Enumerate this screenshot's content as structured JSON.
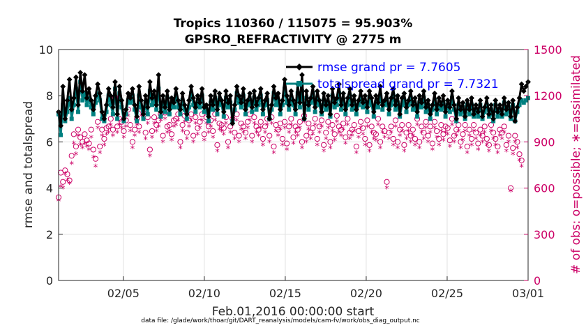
{
  "chart_data": {
    "type": "line",
    "title_line1": "Tropics 110360 / 115075 = 95.903%",
    "title_line2": "GPSRO_REFRACTIVITY @ 2775 m",
    "ylabel": "rmse and totalspread",
    "ylabel_right": "# of obs: o=possible; ∗=assimilated",
    "xlabel": "Feb.01,2016 00:00:00 start",
    "footnote": "data file: /glade/work/thoar/git/DART_reanalysis/models/cam-fv/work/obs_diag_output.nc",
    "ylim": [
      0,
      10
    ],
    "ylim_right": [
      0,
      1500
    ],
    "xlim_days": [
      1,
      30
    ],
    "grid": true,
    "yticks": [
      "0",
      "2",
      "4",
      "6",
      "8",
      "10"
    ],
    "yticks_right": [
      "0",
      "300",
      "600",
      "900",
      "1200",
      "1500"
    ],
    "xticks": [
      {
        "day": 5,
        "label": "02/05"
      },
      {
        "day": 10,
        "label": "02/10"
      },
      {
        "day": 15,
        "label": "02/15"
      },
      {
        "day": 20,
        "label": "02/20"
      },
      {
        "day": 25,
        "label": "02/25"
      },
      {
        "day": 30,
        "label": "03/01"
      }
    ],
    "legend": [
      {
        "label": "rmse grand pr = 7.7605",
        "color": "#000000"
      },
      {
        "label": "totalspread grand pr = 7.7321",
        "color": "#008080"
      }
    ],
    "colors": {
      "rmse": "#000000",
      "spread": "#008080",
      "obs": "#cc0066",
      "grid": "#e0e0e0"
    },
    "series_rmse": [
      7.3,
      6.7,
      8.4,
      7.0,
      7.8,
      8.7,
      7.4,
      7.9,
      8.8,
      7.6,
      9.0,
      8.2,
      8.9,
      7.9,
      8.3,
      7.8,
      7.4,
      8.0,
      8.5,
      8.1,
      7.3,
      7.0,
      7.6,
      8.3,
      8.0,
      7.5,
      8.6,
      7.2,
      8.4,
      7.8,
      7.0,
      7.4,
      8.1,
      7.9,
      8.3,
      7.6,
      7.1,
      8.4,
      7.8,
      7.2,
      8.0,
      7.5,
      8.6,
      7.9,
      8.2,
      7.6,
      8.9,
      7.3,
      8.0,
      7.5,
      8.2,
      7.4,
      7.9,
      7.7,
      8.3,
      7.8,
      7.4,
      8.1,
      7.6,
      7.2,
      7.8,
      8.4,
      7.9,
      7.5,
      8.0,
      7.7,
      8.3,
      7.5,
      7.6,
      7.1,
      8.0,
      7.6,
      8.2,
      7.4,
      8.1,
      7.8,
      7.3,
      8.2,
      7.7,
      8.0,
      6.8,
      7.6,
      8.4,
      8.0,
      7.7,
      8.3,
      7.4,
      7.8,
      8.1,
      7.5,
      8.2,
      7.6,
      7.9,
      8.3,
      7.4,
      7.8,
      8.1,
      7.0,
      7.6,
      8.4,
      7.9,
      8.1,
      7.4,
      7.8,
      8.7,
      8.0,
      7.6,
      8.2,
      7.8,
      7.4,
      8.5,
      7.7,
      8.9,
      7.0,
      8.2,
      7.6,
      7.9,
      8.4,
      7.5,
      8.2,
      7.8,
      7.3,
      8.1,
      7.6,
      8.0,
      7.2,
      8.3,
      7.7,
      7.9,
      8.5,
      7.6,
      8.1,
      7.4,
      7.9,
      8.3,
      7.6,
      8.0,
      7.4,
      7.8,
      8.2,
      7.7,
      8.0,
      7.5,
      8.2,
      7.9,
      7.3,
      8.0,
      7.7,
      8.4,
      7.6,
      7.8,
      8.1,
      7.4,
      7.9,
      8.3,
      7.6,
      8.0,
      7.2,
      7.9,
      8.1,
      7.5,
      7.8,
      8.2,
      7.6,
      7.9,
      7.3,
      8.0,
      7.7,
      8.2,
      7.5,
      7.8,
      7.2,
      7.6,
      8.1,
      7.4,
      7.9,
      7.6,
      8.0,
      7.3,
      7.8,
      7.5,
      8.2,
      7.6,
      7.0,
      7.9,
      7.4,
      7.7,
      7.1,
      7.8,
      7.4,
      7.9,
      7.2,
      7.6,
      7.3,
      7.8,
      7.1,
      7.5,
      7.9,
      7.2,
      7.6,
      7.0,
      7.8,
      7.3,
      7.6,
      7.2,
      7.9,
      7.4,
      7.7,
      7.1,
      7.8,
      6.9,
      7.5,
      7.9,
      8.5,
      8.2,
      8.4,
      8.6
    ],
    "series_spread": [
      7.2,
      6.3,
      7.6,
      6.9,
      7.3,
      7.9,
      7.0,
      7.6,
      8.3,
      7.3,
      8.6,
      7.8,
      8.1,
      7.6,
      7.9,
      7.5,
      7.2,
      7.7,
      8.1,
      7.8,
      7.0,
      6.9,
      7.3,
      8.0,
      7.6,
      7.2,
      8.3,
      7.0,
      8.1,
      7.5,
      6.9,
      7.2,
      7.8,
      7.7,
      8.0,
      7.4,
      6.9,
      8.0,
      7.5,
      7.0,
      7.7,
      7.2,
      8.2,
      7.6,
      7.9,
      7.4,
      8.3,
      7.1,
      7.7,
      7.3,
      7.9,
      7.2,
      7.6,
      7.5,
      8.0,
      7.5,
      7.2,
      7.8,
      7.4,
      7.0,
      7.5,
      8.1,
      7.6,
      7.3,
      7.7,
      7.5,
      8.0,
      7.3,
      7.4,
      6.9,
      7.7,
      7.4,
      7.9,
      7.2,
      7.8,
      7.6,
      7.1,
      7.9,
      7.5,
      7.7,
      6.9,
      7.4,
      8.1,
      7.7,
      7.5,
      8.0,
      7.2,
      7.6,
      7.8,
      7.3,
      7.9,
      7.4,
      7.6,
      8.0,
      7.2,
      7.6,
      7.8,
      7.0,
      7.4,
      8.1,
      7.6,
      7.8,
      7.2,
      7.6,
      8.3,
      7.7,
      7.4,
      7.9,
      7.6,
      7.2,
      8.1,
      7.5,
      8.2,
      7.0,
      7.9,
      7.4,
      7.7,
      8.1,
      7.3,
      7.9,
      7.6,
      7.2,
      7.8,
      7.4,
      7.7,
      7.1,
      8.0,
      7.5,
      7.6,
      8.1,
      7.4,
      7.8,
      7.2,
      7.6,
      8.0,
      7.4,
      7.7,
      7.2,
      7.6,
      7.9,
      7.5,
      7.7,
      7.3,
      7.9,
      7.6,
      7.1,
      7.7,
      7.5,
      8.0,
      7.4,
      7.6,
      7.8,
      7.2,
      7.6,
      8.0,
      7.4,
      7.7,
      7.1,
      7.6,
      7.8,
      7.3,
      7.6,
      7.9,
      7.4,
      7.6,
      7.1,
      7.7,
      7.5,
      7.9,
      7.3,
      7.6,
      7.0,
      7.4,
      7.8,
      7.2,
      7.6,
      7.4,
      7.7,
      7.1,
      7.6,
      7.3,
      7.9,
      7.4,
      6.9,
      7.6,
      7.2,
      7.5,
      7.0,
      7.6,
      7.2,
      7.6,
      7.1,
      7.4,
      7.1,
      7.6,
      7.0,
      7.3,
      7.6,
      7.1,
      7.4,
      6.9,
      7.6,
      7.1,
      7.4,
      7.1,
      7.7,
      7.2,
      7.5,
      7.0,
      7.6,
      6.9,
      7.3,
      7.6,
      7.8,
      7.7,
      7.8,
      7.9
    ],
    "series_obs_possible": [
      540,
      700,
      640,
      715,
      690,
      650,
      810,
      950,
      870,
      980,
      930,
      900,
      950,
      910,
      890,
      980,
      850,
      790,
      1030,
      870,
      980,
      920,
      990,
      1000,
      1050,
      980,
      1190,
      1000,
      1050,
      1030,
      970,
      1040,
      1110,
      1010,
      900,
      980,
      1050,
      1000,
      1110,
      1090,
      960,
      1060,
      850,
      970,
      1060,
      1010,
      1040,
      1080,
      940,
      1090,
      1000,
      1010,
      950,
      1040,
      1050,
      1080,
      900,
      1010,
      1070,
      960,
      1040,
      1080,
      940,
      1060,
      990,
      1030,
      1080,
      950,
      1060,
      1000,
      1040,
      970,
      1080,
      880,
      1020,
      1010,
      990,
      1060,
      900,
      1000,
      1050,
      960,
      1080,
      940,
      1020,
      1000,
      960,
      1030,
      1080,
      940,
      1060,
      1000,
      980,
      1030,
      920,
      1000,
      1050,
      940,
      1060,
      870,
      1010,
      980,
      1020,
      920,
      1030,
      890,
      1000,
      1050,
      930,
      1000,
      980,
      1030,
      900,
      1070,
      940,
      1020,
      960,
      990,
      1050,
      920,
      1000,
      1040,
      880,
      960,
      1030,
      900,
      1010,
      950,
      1070,
      1000,
      980,
      1020,
      930,
      1050,
      960,
      980,
      1010,
      870,
      970,
      1030,
      990,
      920,
      1040,
      880,
      1000,
      960,
      950,
      1050,
      900,
      1000,
      970,
      640,
      960,
      1000,
      920,
      1040,
      900,
      980,
      1010,
      880,
      960,
      1010,
      940,
      980,
      920,
      1050,
      900,
      1000,
      960,
      1030,
      940,
      1000,
      890,
      1030,
      970,
      920,
      1010,
      950,
      1000,
      990,
      910,
      1050,
      940,
      980,
      1010,
      900,
      950,
      1010,
      870,
      980,
      920,
      1010,
      960,
      890,
      980,
      940,
      1000,
      920,
      880,
      1010,
      960,
      920,
      870,
      980,
      960,
      1000,
      880,
      940,
      600,
      860,
      940,
      900,
      820,
      780
    ],
    "series_obs_assimilated": [
      520,
      610,
      600,
      690,
      650,
      630,
      760,
      890,
      820,
      940,
      880,
      860,
      890,
      870,
      850,
      930,
      800,
      740,
      990,
      830,
      940,
      880,
      950,
      960,
      1010,
      940,
      1150,
      960,
      1010,
      990,
      930,
      1000,
      1070,
      970,
      860,
      940,
      1010,
      960,
      1070,
      1050,
      920,
      1020,
      810,
      930,
      1020,
      970,
      1000,
      1040,
      900,
      1050,
      960,
      970,
      910,
      1000,
      1010,
      1040,
      860,
      970,
      1030,
      920,
      1000,
      1040,
      900,
      1020,
      950,
      990,
      1040,
      910,
      1020,
      960,
      1000,
      930,
      1040,
      840,
      980,
      970,
      950,
      1020,
      860,
      960,
      1010,
      920,
      1040,
      900,
      980,
      960,
      920,
      990,
      1040,
      900,
      1020,
      960,
      940,
      990,
      880,
      960,
      1010,
      900,
      1020,
      830,
      970,
      940,
      980,
      880,
      990,
      850,
      960,
      1010,
      890,
      960,
      940,
      990,
      860,
      1030,
      900,
      980,
      920,
      950,
      1010,
      880,
      960,
      1000,
      840,
      920,
      990,
      860,
      970,
      910,
      1030,
      960,
      940,
      980,
      890,
      1010,
      920,
      940,
      970,
      830,
      930,
      990,
      950,
      880,
      1000,
      840,
      960,
      920,
      910,
      1010,
      860,
      960,
      930,
      600,
      920,
      960,
      880,
      1000,
      860,
      940,
      970,
      840,
      920,
      970,
      900,
      940,
      880,
      1010,
      860,
      960,
      920,
      990,
      900,
      960,
      850,
      990,
      930,
      880,
      970,
      910,
      960,
      950,
      870,
      1010,
      900,
      940,
      970,
      860,
      910,
      970,
      830,
      940,
      880,
      970,
      920,
      850,
      940,
      900,
      960,
      880,
      840,
      970,
      920,
      880,
      830,
      940,
      920,
      960,
      840,
      900,
      580,
      820,
      900,
      860,
      780,
      740
    ]
  }
}
